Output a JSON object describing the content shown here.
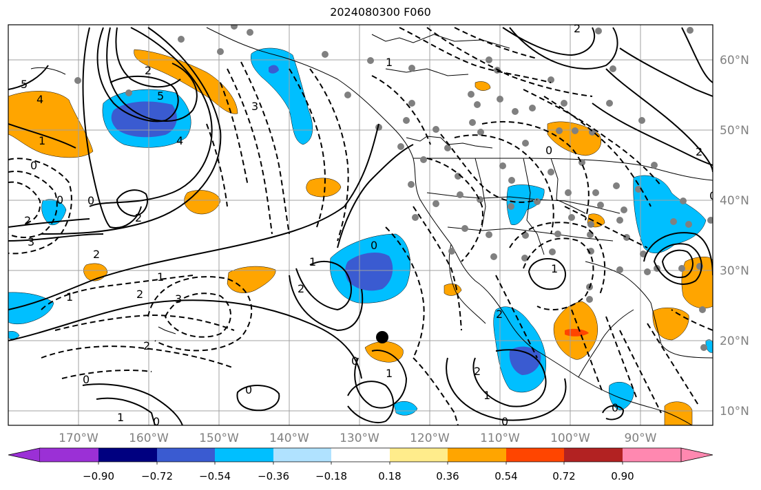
{
  "title": "2024080300 F060",
  "colors": {
    "neg_090": "#9b30d6",
    "neg_072": "#000080",
    "neg_054": "#3a5bd1",
    "neg_036": "#00bfff",
    "neg_018": "#b0e2ff",
    "zero": "#ffffff",
    "pos_018": "#ffec8b",
    "pos_036": "#ffa500",
    "pos_054": "#ff4500",
    "pos_072": "#b22222",
    "pos_090": "#ff88b0",
    "coast": "#000000",
    "grid": "#a0a0a0",
    "station": "#808080"
  },
  "lat_labels": [
    "60°N",
    "50°N",
    "40°N",
    "30°N",
    "20°N",
    "10°N"
  ],
  "lon_labels": [
    "170°W",
    "160°W",
    "150°W",
    "140°W",
    "130°W",
    "120°W",
    "110°W",
    "100°W",
    "90°W"
  ],
  "colorbar": {
    "ticks": [
      "−0.90",
      "−0.72",
      "−0.54",
      "−0.36",
      "−0.18",
      "0.18",
      "0.36",
      "0.54",
      "0.72",
      "0.90"
    ]
  },
  "contour_labels": [
    "5",
    "4",
    "2",
    "1",
    "0",
    "3",
    "5",
    "4",
    "2",
    "0",
    "2",
    "1",
    "2",
    "2",
    "3",
    "1",
    "0",
    "2",
    "3",
    "0",
    "2",
    "1",
    "0",
    "1",
    "0",
    "2",
    "1",
    "0",
    "2",
    "1",
    "0",
    "1",
    "0",
    "0",
    "2",
    "0",
    "0",
    "1",
    "2"
  ]
}
